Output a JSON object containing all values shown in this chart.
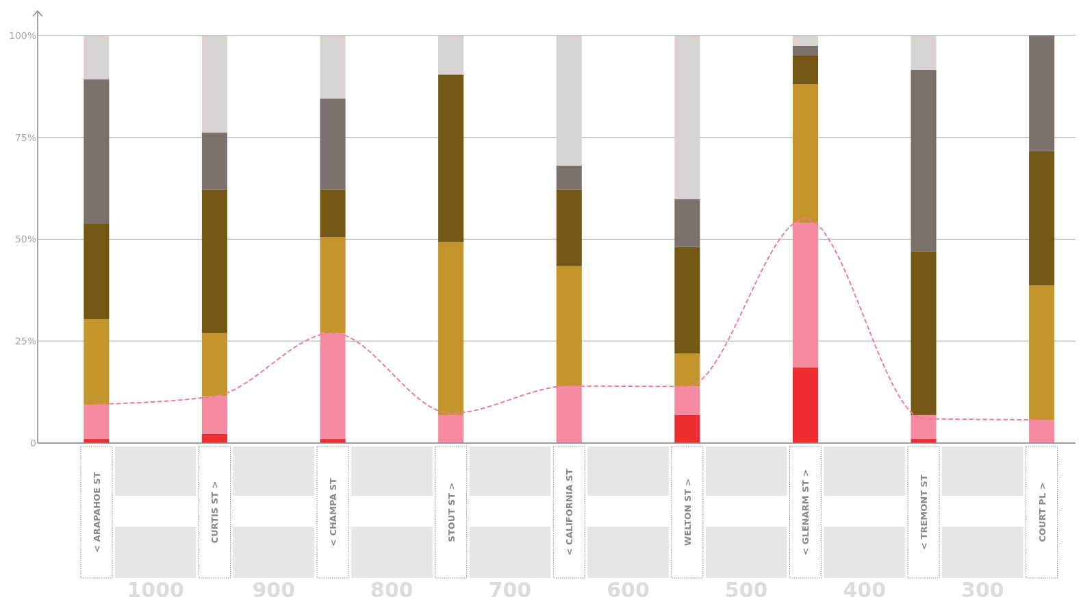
{
  "chart_data": {
    "type": "bar",
    "stacked": true,
    "categories": [
      "< ARAPAHOE ST",
      "CURTIS ST >",
      "< CHAMPA ST",
      "STOUT ST >",
      "< CALIFORNIA ST",
      "WELTON ST >",
      "< GLENARM ST >",
      "< TREMONT ST",
      "COURT PL >"
    ],
    "series": [
      {
        "color": "#ee2d31",
        "values": [
          1,
          2.2,
          1,
          0,
          0,
          6.9,
          18.6,
          1,
          0
        ]
      },
      {
        "color": "#f48ba2",
        "values": [
          8.3,
          9.3,
          26,
          6.9,
          13.9,
          7,
          35.5,
          5.9,
          5.7
        ]
      },
      {
        "color": "#c4952c",
        "values": [
          21.1,
          15.5,
          23.5,
          42.4,
          29.5,
          8.1,
          33.9,
          0,
          33
        ]
      },
      {
        "color": "#755813",
        "values": [
          23.5,
          35.2,
          11.7,
          41.1,
          18.8,
          26.1,
          7.1,
          40.1,
          32.9
        ]
      },
      {
        "color": "#7b716c",
        "values": [
          35.3,
          14,
          22.3,
          0,
          5.9,
          11.7,
          2.4,
          44.6,
          28.4
        ]
      },
      {
        "color": "#d8d3d0",
        "values": [
          10.8,
          23.8,
          15.5,
          9.6,
          31.9,
          40.2,
          2.5,
          8.4,
          0
        ]
      },
      {
        "type": "line",
        "line_style": "dashed",
        "color": "#f47a99",
        "values": [
          9.5,
          11.5,
          27,
          7.3,
          14,
          13.9,
          55,
          6,
          5.7
        ]
      }
    ],
    "ylim": [
      0,
      106
    ],
    "yticks": [
      0,
      {
        "value": 25,
        "label": "25%"
      },
      {
        "value": 50,
        "label": "50%"
      },
      {
        "value": 75,
        "label": "75%"
      },
      {
        "value": 100,
        "label": "100%"
      }
    ],
    "grid": "y",
    "annotations": [
      "1000",
      "900",
      "800",
      "700",
      "600",
      "500",
      "400",
      "300"
    ]
  }
}
